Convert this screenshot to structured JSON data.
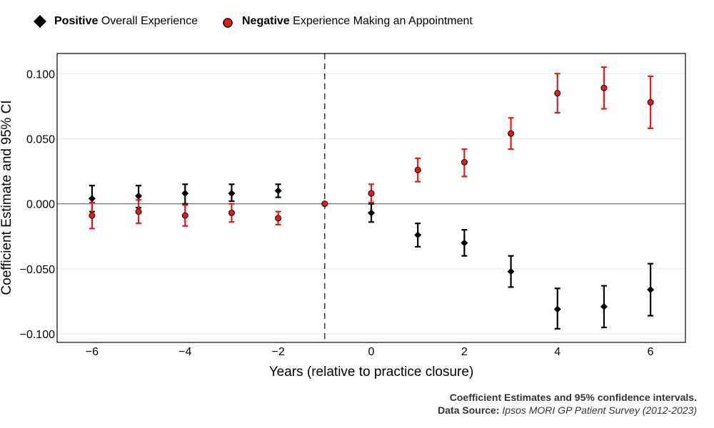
{
  "legend": {
    "item1_bold": "Positive",
    "item1_rest": "Overall Experience",
    "item2_bold": "Negative",
    "item2_rest": "Experience Making an Appointment"
  },
  "caption": {
    "line1": "Coefficient Estimates and 95% confidence intervals.",
    "line2_bold": "Data Source:",
    "line2_italic": "Ipsos MORI GP Patient Survey (2012-2023)"
  },
  "chart_data": {
    "type": "scatter",
    "xlabel": "Years (relative to practice closure)",
    "ylabel": "Coefficient Estimate and 95% CI",
    "xlim": [
      -6.75,
      6.75
    ],
    "ylim": [
      -0.1065,
      0.1155
    ],
    "x_ticks": [
      -6,
      -4,
      -2,
      0,
      2,
      4,
      6
    ],
    "x_tick_labels": [
      "−6",
      "−4",
      "−2",
      "0",
      "2",
      "4",
      "6"
    ],
    "y_ticks": [
      -0.1,
      -0.05,
      0,
      0.05,
      0.1
    ],
    "y_tick_labels": [
      "−0.100",
      "−0.050",
      "0.000",
      "0.050",
      "0.100"
    ],
    "reference_vline": -1,
    "reference_hline": 0,
    "grid": "horizontal",
    "colors": {
      "positive": "#000000",
      "negative": "#e31a1c"
    },
    "series": [
      {
        "name": "Positive Overall Experience",
        "marker": "diamond",
        "points": [
          {
            "x": -6,
            "y": 0.004,
            "lo": -0.006,
            "hi": 0.014
          },
          {
            "x": -5,
            "y": 0.006,
            "lo": -0.003,
            "hi": 0.014
          },
          {
            "x": -4,
            "y": 0.008,
            "lo": 0.0,
            "hi": 0.015
          },
          {
            "x": -3,
            "y": 0.008,
            "lo": 0.002,
            "hi": 0.015
          },
          {
            "x": -2,
            "y": 0.01,
            "lo": 0.005,
            "hi": 0.015
          },
          {
            "x": -1,
            "y": 0.0,
            "lo": 0.0,
            "hi": 0.0
          },
          {
            "x": 0,
            "y": -0.007,
            "lo": -0.014,
            "hi": 0.0
          },
          {
            "x": 1,
            "y": -0.024,
            "lo": -0.033,
            "hi": -0.015
          },
          {
            "x": 2,
            "y": -0.03,
            "lo": -0.04,
            "hi": -0.02
          },
          {
            "x": 3,
            "y": -0.052,
            "lo": -0.064,
            "hi": -0.04
          },
          {
            "x": 4,
            "y": -0.081,
            "lo": -0.096,
            "hi": -0.065
          },
          {
            "x": 5,
            "y": -0.079,
            "lo": -0.095,
            "hi": -0.063
          },
          {
            "x": 6,
            "y": -0.066,
            "lo": -0.086,
            "hi": -0.046
          }
        ]
      },
      {
        "name": "Negative Experience Making an Appointment",
        "marker": "circle",
        "points": [
          {
            "x": -6,
            "y": -0.009,
            "lo": -0.019,
            "hi": 0.001
          },
          {
            "x": -5,
            "y": -0.006,
            "lo": -0.015,
            "hi": 0.003
          },
          {
            "x": -4,
            "y": -0.009,
            "lo": -0.017,
            "hi": -0.001
          },
          {
            "x": -3,
            "y": -0.007,
            "lo": -0.014,
            "hi": 0.0
          },
          {
            "x": -2,
            "y": -0.011,
            "lo": -0.016,
            "hi": -0.006
          },
          {
            "x": -1,
            "y": 0.0,
            "lo": 0.0,
            "hi": 0.0
          },
          {
            "x": 0,
            "y": 0.008,
            "lo": 0.001,
            "hi": 0.015
          },
          {
            "x": 1,
            "y": 0.026,
            "lo": 0.017,
            "hi": 0.035
          },
          {
            "x": 2,
            "y": 0.032,
            "lo": 0.021,
            "hi": 0.042
          },
          {
            "x": 3,
            "y": 0.054,
            "lo": 0.042,
            "hi": 0.066
          },
          {
            "x": 4,
            "y": 0.085,
            "lo": 0.07,
            "hi": 0.1
          },
          {
            "x": 5,
            "y": 0.089,
            "lo": 0.073,
            "hi": 0.105
          },
          {
            "x": 6,
            "y": 0.078,
            "lo": 0.058,
            "hi": 0.098
          }
        ]
      }
    ]
  }
}
